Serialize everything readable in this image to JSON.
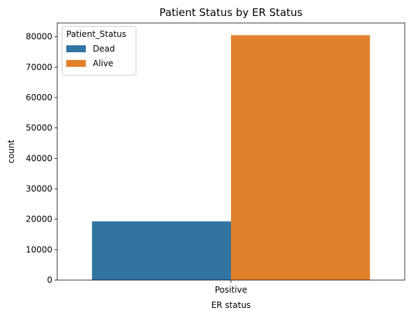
{
  "chart_data": {
    "type": "bar",
    "title": "Patient Status by ER Status",
    "xlabel": "ER status",
    "ylabel": "count",
    "categories": [
      "Positive"
    ],
    "series": [
      {
        "name": "Dead",
        "values": [
          19300
        ],
        "color": "#3274a1"
      },
      {
        "name": "Alive",
        "values": [
          80500
        ],
        "color": "#e1812c"
      }
    ],
    "ylim": [
      0,
      84500
    ],
    "yticks": [
      0,
      10000,
      20000,
      30000,
      40000,
      50000,
      60000,
      70000,
      80000
    ],
    "legend": {
      "title": "Patient_Status",
      "placement": "top-left"
    },
    "grid": false
  }
}
